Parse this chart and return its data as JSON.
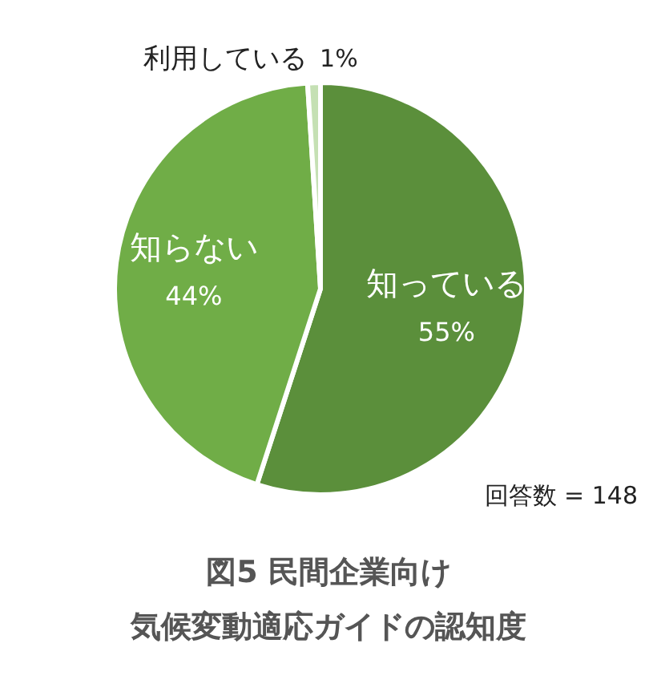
{
  "chart_data": {
    "type": "pie",
    "title": "図5 民間企業向け",
    "subtitle": "気候変動適応ガイドの認知度",
    "categories": [
      "知っている",
      "知らない",
      "利用している"
    ],
    "values": [
      55,
      44,
      1
    ],
    "colors": [
      "#5b8f3b",
      "#70ad47",
      "#c5e0b4"
    ],
    "value_labels": [
      "55%",
      "44%",
      "1%"
    ],
    "legend": false,
    "annotations": [
      "回答数 = 148"
    ]
  }
}
